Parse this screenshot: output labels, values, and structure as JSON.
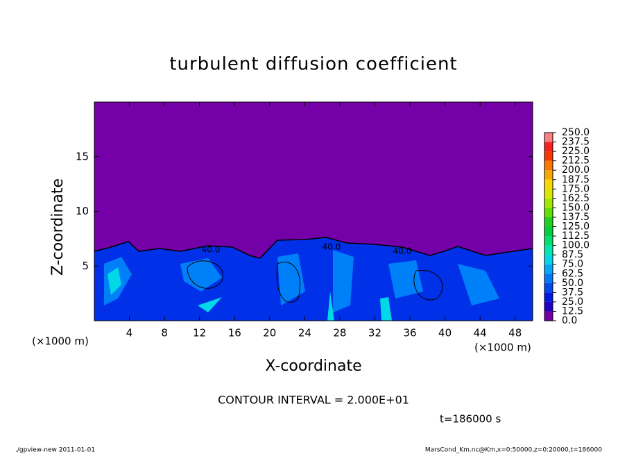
{
  "chart_data": {
    "type": "contour",
    "title": "turbulent diffusion coefficient",
    "xlabel": "X-coordinate",
    "ylabel": "Z-coordinate",
    "x_unit_label": "(×1000 m)",
    "xlim": [
      0,
      50
    ],
    "xticks": [
      4,
      8,
      12,
      16,
      20,
      24,
      28,
      32,
      36,
      40,
      44,
      48
    ],
    "ylim": [
      0,
      20
    ],
    "yticks": [
      5,
      10,
      15
    ],
    "background_color": "#7400a8",
    "contour_labels": [
      "40.0",
      "40.0",
      "40.0"
    ],
    "colorbar": {
      "levels": [
        {
          "value": 0,
          "label": "0.0"
        },
        {
          "value": 12.5,
          "label": "12.5"
        },
        {
          "value": 25,
          "label": "25.0"
        },
        {
          "value": 37.5,
          "label": "37.5"
        },
        {
          "value": 50,
          "label": "50.0"
        },
        {
          "value": 62.5,
          "label": "62.5"
        },
        {
          "value": 75,
          "label": "75.0"
        },
        {
          "value": 87.5,
          "label": "87.5"
        },
        {
          "value": 100,
          "label": "100.0"
        },
        {
          "value": 112.5,
          "label": "112.5"
        },
        {
          "value": 125,
          "label": "125.0"
        },
        {
          "value": 137.5,
          "label": "137.5"
        },
        {
          "value": 150,
          "label": "150.0"
        },
        {
          "value": 162.5,
          "label": "162.5"
        },
        {
          "value": 175,
          "label": "175.0"
        },
        {
          "value": 187.5,
          "label": "187.5"
        },
        {
          "value": 200,
          "label": "200.0"
        },
        {
          "value": 212.5,
          "label": "212.5"
        },
        {
          "value": 225,
          "label": "225.0"
        },
        {
          "value": 237.5,
          "label": "237.5"
        },
        {
          "value": 250,
          "label": "250.0"
        }
      ],
      "colors": [
        "#7400a8",
        "#2400c8",
        "#0018e0",
        "#0048f0",
        "#0078f8",
        "#00a8f8",
        "#00d8e8",
        "#00e8b0",
        "#00e070",
        "#00d040",
        "#20d020",
        "#60e000",
        "#a0e800",
        "#d8e800",
        "#f8d800",
        "#f8a800",
        "#f87800",
        "#f83800",
        "#f82020",
        "#f88080"
      ]
    },
    "contour_interval": "CONTOUR INTERVAL = 2.000E+01",
    "time_label": "t=186000 s",
    "footer_left": "./gpview-new  2011-01-01",
    "footer_right": "MarsCond_Km.nc@Km,x=0:50000,z=0:20000,t=186000"
  }
}
